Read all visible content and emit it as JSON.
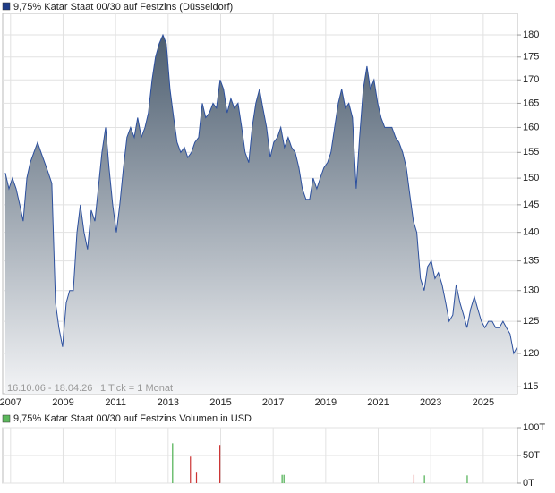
{
  "chart_data": [
    {
      "type": "area",
      "title": "9,75% Katar Staat 00/30 auf Festzins (Düsseldorf)",
      "period": "16.10.06 - 18.04.26",
      "tick_note": "1 Tick = 1 Monat",
      "color": "#2b4f9e",
      "legend_color": "#1f3c88",
      "log_scale": true,
      "grid": true,
      "x": [
        2006.8,
        2006.94,
        2007.07,
        2007.21,
        2007.35,
        2007.48,
        2007.62,
        2007.75,
        2007.89,
        2008.03,
        2008.16,
        2008.3,
        2008.44,
        2008.57,
        2008.71,
        2008.84,
        2008.98,
        2009.12,
        2009.25,
        2009.39,
        2009.53,
        2009.66,
        2009.8,
        2009.93,
        2010.07,
        2010.21,
        2010.34,
        2010.48,
        2010.62,
        2010.75,
        2010.89,
        2011.03,
        2011.16,
        2011.3,
        2011.43,
        2011.57,
        2011.71,
        2011.84,
        2011.98,
        2012.12,
        2012.25,
        2012.39,
        2012.52,
        2012.66,
        2012.8,
        2012.93,
        2013.07,
        2013.21,
        2013.34,
        2013.48,
        2013.62,
        2013.75,
        2013.89,
        2014.02,
        2014.16,
        2014.3,
        2014.43,
        2014.57,
        2014.71,
        2014.84,
        2014.98,
        2015.11,
        2015.25,
        2015.39,
        2015.52,
        2015.66,
        2015.8,
        2015.93,
        2016.07,
        2016.2,
        2016.34,
        2016.48,
        2016.61,
        2016.75,
        2016.89,
        2017.02,
        2017.16,
        2017.29,
        2017.43,
        2017.57,
        2017.7,
        2017.84,
        2017.98,
        2018.11,
        2018.25,
        2018.39,
        2018.52,
        2018.66,
        2018.79,
        2018.93,
        2019.07,
        2019.2,
        2019.34,
        2019.48,
        2019.61,
        2019.75,
        2019.88,
        2020.02,
        2020.16,
        2020.29,
        2020.43,
        2020.57,
        2020.7,
        2020.84,
        2020.98,
        2021.11,
        2021.25,
        2021.38,
        2021.52,
        2021.66,
        2021.79,
        2021.93,
        2022.07,
        2022.2,
        2022.34,
        2022.47,
        2022.61,
        2022.75,
        2022.88,
        2023.02,
        2023.16,
        2023.29,
        2023.43,
        2023.57,
        2023.7,
        2023.84,
        2023.97,
        2024.11,
        2024.25,
        2024.38,
        2024.52,
        2024.66,
        2024.79,
        2024.93,
        2025.06,
        2025.2,
        2025.34,
        2025.47,
        2025.61,
        2025.75,
        2025.88,
        2026.02,
        2026.16,
        2026.29
      ],
      "values": [
        151,
        148,
        150,
        148,
        145,
        142,
        150,
        153,
        155,
        157,
        155,
        153,
        151,
        149,
        128,
        124,
        121,
        128,
        130,
        130,
        140,
        145,
        140,
        137,
        144,
        142,
        148,
        155,
        160,
        152,
        145,
        140,
        145,
        152,
        158,
        160,
        158,
        162,
        158,
        160,
        163,
        170,
        175,
        178,
        180,
        178,
        168,
        162,
        157,
        155,
        156,
        154,
        155,
        157,
        158,
        165,
        162,
        163,
        165,
        164,
        170,
        168,
        163,
        166,
        164,
        165,
        160,
        155,
        153,
        160,
        165,
        168,
        164,
        160,
        154,
        157,
        158,
        160,
        156,
        158,
        156,
        155,
        152,
        148,
        146,
        146,
        150,
        148,
        150,
        152,
        153,
        155,
        160,
        165,
        168,
        164,
        165,
        162,
        148,
        158,
        168,
        173,
        168,
        170,
        165,
        162,
        160,
        160,
        160,
        158,
        157,
        155,
        152,
        147,
        142,
        140,
        132,
        130,
        134,
        135,
        132,
        133,
        131,
        128,
        125,
        126,
        131,
        128,
        126,
        124,
        127,
        129,
        127,
        125,
        124,
        125,
        125,
        124,
        124,
        125,
        124,
        123,
        120,
        121
      ],
      "xlim": [
        2006.7,
        2026.3
      ],
      "xticks": [
        2007,
        2009,
        2011,
        2013,
        2015,
        2017,
        2019,
        2021,
        2023,
        2025
      ],
      "ylim": [
        114,
        185
      ],
      "yticks": [
        115,
        120,
        125,
        130,
        135,
        140,
        145,
        150,
        155,
        160,
        165,
        170,
        175,
        180
      ]
    },
    {
      "type": "bar",
      "title": "9,75% Katar Staat 00/30 auf Festzins Volumen in USD",
      "legend_color": "#5cb85c",
      "x": [
        2013.17,
        2013.85,
        2014.08,
        2014.97,
        2017.34,
        2017.41,
        2022.36,
        2022.76,
        2024.39
      ],
      "values": [
        72,
        48,
        19,
        69,
        15,
        15,
        15,
        14,
        14
      ],
      "colors": [
        "#4caf50",
        "#cc3333",
        "#cc3333",
        "#cc3333",
        "#4caf50",
        "#4caf50",
        "#cc3333",
        "#4caf50",
        "#4caf50"
      ],
      "ylim": [
        0,
        100
      ],
      "yticks": [
        {
          "value": 100,
          "label": "100T"
        },
        {
          "value": 50,
          "label": "50T"
        },
        {
          "value": 0,
          "label": "0T"
        }
      ],
      "grid": true
    }
  ]
}
